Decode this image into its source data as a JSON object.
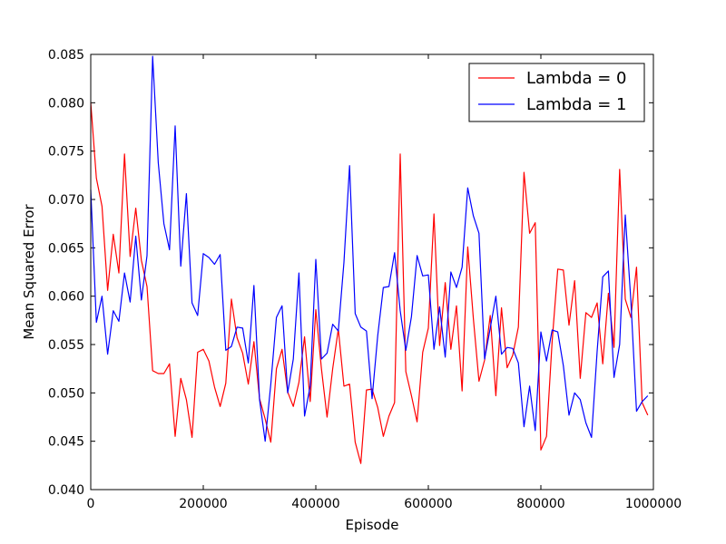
{
  "chart_data": {
    "type": "line",
    "title": "",
    "xlabel": "Episode",
    "ylabel": "Mean Squared Error",
    "xlim": [
      0,
      1000000
    ],
    "ylim": [
      0.04,
      0.085
    ],
    "x_ticks": [
      0,
      200000,
      400000,
      600000,
      800000,
      1000000
    ],
    "x_tick_labels": [
      "0",
      "200000",
      "400000",
      "600000",
      "800000",
      "1000000"
    ],
    "y_ticks": [
      0.04,
      0.045,
      0.05,
      0.055,
      0.06,
      0.065,
      0.07,
      0.075,
      0.08,
      0.085
    ],
    "y_tick_labels": [
      "0.040",
      "0.045",
      "0.050",
      "0.055",
      "0.060",
      "0.065",
      "0.070",
      "0.075",
      "0.080",
      "0.085"
    ],
    "grid": false,
    "legend_position": "top-right",
    "x": [
      0,
      10000,
      20000,
      30000,
      40000,
      50000,
      60000,
      70000,
      80000,
      90000,
      100000,
      110000,
      120000,
      130000,
      140000,
      150000,
      160000,
      170000,
      180000,
      190000,
      200000,
      210000,
      220000,
      230000,
      240000,
      250000,
      260000,
      270000,
      280000,
      290000,
      300000,
      310000,
      320000,
      330000,
      340000,
      350000,
      360000,
      370000,
      380000,
      390000,
      400000,
      410000,
      420000,
      430000,
      440000,
      450000,
      460000,
      470000,
      480000,
      490000,
      500000,
      510000,
      520000,
      530000,
      540000,
      550000,
      560000,
      570000,
      580000,
      590000,
      600000,
      610000,
      620000,
      630000,
      640000,
      650000,
      660000,
      670000,
      680000,
      690000,
      700000,
      710000,
      720000,
      730000,
      740000,
      750000,
      760000,
      770000,
      780000,
      790000,
      800000,
      810000,
      820000,
      830000,
      840000,
      850000,
      860000,
      870000,
      880000,
      890000,
      900000,
      910000,
      920000,
      930000,
      940000,
      950000,
      960000,
      970000,
      980000,
      990000
    ],
    "series": [
      {
        "name": "Lambda = 0",
        "color": "#ff0000",
        "values": [
          0.08,
          0.0722,
          0.0693,
          0.0606,
          0.0664,
          0.0624,
          0.0747,
          0.0641,
          0.0691,
          0.0637,
          0.061,
          0.0523,
          0.052,
          0.052,
          0.053,
          0.0455,
          0.0515,
          0.0493,
          0.0454,
          0.0542,
          0.0545,
          0.0533,
          0.0506,
          0.0486,
          0.051,
          0.0597,
          0.0557,
          0.0541,
          0.0509,
          0.0553,
          0.0494,
          0.0473,
          0.0449,
          0.0525,
          0.0545,
          0.0501,
          0.0486,
          0.0511,
          0.0558,
          0.0491,
          0.0586,
          0.0525,
          0.0475,
          0.0525,
          0.0566,
          0.0507,
          0.0509,
          0.0449,
          0.0427,
          0.0503,
          0.0504,
          0.0485,
          0.0455,
          0.0476,
          0.049,
          0.0747,
          0.0522,
          0.0497,
          0.047,
          0.0542,
          0.0567,
          0.0685,
          0.0549,
          0.0614,
          0.0545,
          0.059,
          0.0502,
          0.0651,
          0.0577,
          0.0512,
          0.0534,
          0.058,
          0.0497,
          0.0588,
          0.0526,
          0.0539,
          0.0568,
          0.0728,
          0.0665,
          0.0676,
          0.0441,
          0.0455,
          0.0553,
          0.0628,
          0.0627,
          0.057,
          0.0616,
          0.0515,
          0.0583,
          0.0578,
          0.0593,
          0.053,
          0.0603,
          0.0547,
          0.0731,
          0.0597,
          0.0578,
          0.063,
          0.049,
          0.0477
        ]
      },
      {
        "name": "Lambda = 1",
        "color": "#0000ff",
        "values": [
          0.071,
          0.0573,
          0.06,
          0.054,
          0.0585,
          0.0574,
          0.0624,
          0.0594,
          0.0662,
          0.0596,
          0.0642,
          0.0848,
          0.0738,
          0.0675,
          0.0648,
          0.0776,
          0.0631,
          0.0706,
          0.0593,
          0.058,
          0.0644,
          0.064,
          0.0633,
          0.0643,
          0.0544,
          0.0548,
          0.0568,
          0.0567,
          0.0531,
          0.0611,
          0.0493,
          0.045,
          0.0509,
          0.0578,
          0.059,
          0.05,
          0.0535,
          0.0624,
          0.0476,
          0.0507,
          0.0638,
          0.0535,
          0.0541,
          0.0571,
          0.0564,
          0.0635,
          0.0735,
          0.0582,
          0.0568,
          0.0564,
          0.0494,
          0.0559,
          0.0609,
          0.061,
          0.0645,
          0.0585,
          0.0544,
          0.0579,
          0.0642,
          0.0621,
          0.0622,
          0.0545,
          0.0589,
          0.0537,
          0.0625,
          0.0609,
          0.063,
          0.0712,
          0.0683,
          0.0665,
          0.0535,
          0.0567,
          0.06,
          0.054,
          0.0547,
          0.0546,
          0.0531,
          0.0465,
          0.0507,
          0.0461,
          0.0563,
          0.0533,
          0.0565,
          0.0563,
          0.0528,
          0.0477,
          0.05,
          0.0493,
          0.0469,
          0.0454,
          0.0543,
          0.062,
          0.0626,
          0.0516,
          0.055,
          0.0684,
          0.0595,
          0.0481,
          0.0491,
          0.0497
        ]
      }
    ]
  }
}
